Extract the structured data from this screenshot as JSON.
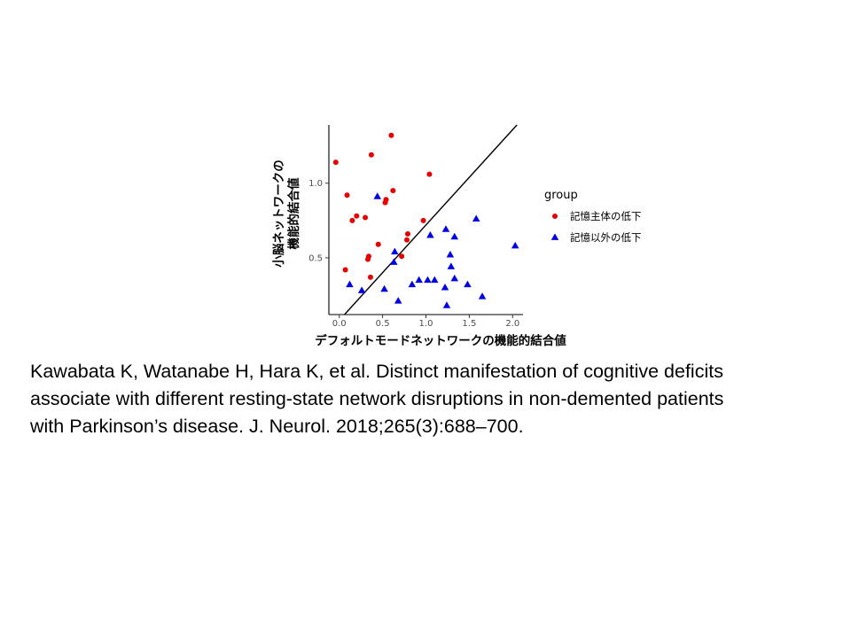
{
  "chart_data": {
    "type": "scatter",
    "xlabel": "デフォルトモードネットワークの機能的結合値",
    "ylabel_lines": [
      "小脳ネットワークの",
      "機能的結合値"
    ],
    "xlim": [
      -0.12,
      2.12
    ],
    "ylim": [
      0.12,
      1.39
    ],
    "x_ticks": [
      {
        "value": 0.0,
        "label": "0.0"
      },
      {
        "value": 0.5,
        "label": "0.5"
      },
      {
        "value": 1.0,
        "label": "1.0"
      },
      {
        "value": 1.5,
        "label": "1.5"
      },
      {
        "value": 2.0,
        "label": "2.0"
      }
    ],
    "y_ticks": [
      {
        "value": 0.5,
        "label": "0.5"
      },
      {
        "value": 1.0,
        "label": "1.0"
      }
    ],
    "reference_line": {
      "x": [
        0.06,
        2.05
      ],
      "y": [
        0.12,
        1.39
      ],
      "color": "#000000"
    },
    "grid": false,
    "legend": {
      "title": "group",
      "position": "right"
    },
    "series": [
      {
        "name": "記憶主体の低下",
        "marker": "circle",
        "color": "#e60000",
        "points": [
          [
            -0.04,
            1.14
          ],
          [
            0.07,
            0.42
          ],
          [
            0.09,
            0.92
          ],
          [
            0.15,
            0.75
          ],
          [
            0.2,
            0.78
          ],
          [
            0.3,
            0.77
          ],
          [
            0.33,
            0.49
          ],
          [
            0.34,
            0.51
          ],
          [
            0.36,
            0.37
          ],
          [
            0.37,
            1.19
          ],
          [
            0.45,
            0.59
          ],
          [
            0.53,
            0.87
          ],
          [
            0.54,
            0.89
          ],
          [
            0.6,
            1.32
          ],
          [
            0.62,
            0.95
          ],
          [
            0.72,
            0.51
          ],
          [
            0.78,
            0.62
          ],
          [
            0.79,
            0.66
          ],
          [
            0.97,
            0.75
          ],
          [
            1.04,
            1.06
          ]
        ]
      },
      {
        "name": "記憶以外の低下",
        "marker": "triangle",
        "color": "#0000e6",
        "points": [
          [
            0.12,
            0.32
          ],
          [
            0.26,
            0.28
          ],
          [
            0.44,
            0.91
          ],
          [
            0.52,
            0.29
          ],
          [
            0.63,
            0.47
          ],
          [
            0.64,
            0.54
          ],
          [
            0.68,
            0.21
          ],
          [
            0.84,
            0.32
          ],
          [
            0.92,
            0.35
          ],
          [
            1.02,
            0.35
          ],
          [
            1.05,
            0.65
          ],
          [
            1.1,
            0.35
          ],
          [
            1.22,
            0.3
          ],
          [
            1.23,
            0.69
          ],
          [
            1.24,
            0.18
          ],
          [
            1.28,
            0.52
          ],
          [
            1.29,
            0.44
          ],
          [
            1.33,
            0.36
          ],
          [
            1.33,
            0.64
          ],
          [
            1.48,
            0.32
          ],
          [
            1.58,
            0.76
          ],
          [
            1.65,
            0.24
          ],
          [
            2.03,
            0.58
          ]
        ]
      }
    ]
  },
  "citation": {
    "lines": [
      "Kawabata K, Watanabe H, Hara K, et al. Distinct manifestation of cognitive deficits",
      "associate with different resting-state network disruptions in non-demented patients",
      "with Parkinson’s disease. J. Neurol. 2018;265(3):688–700."
    ]
  }
}
